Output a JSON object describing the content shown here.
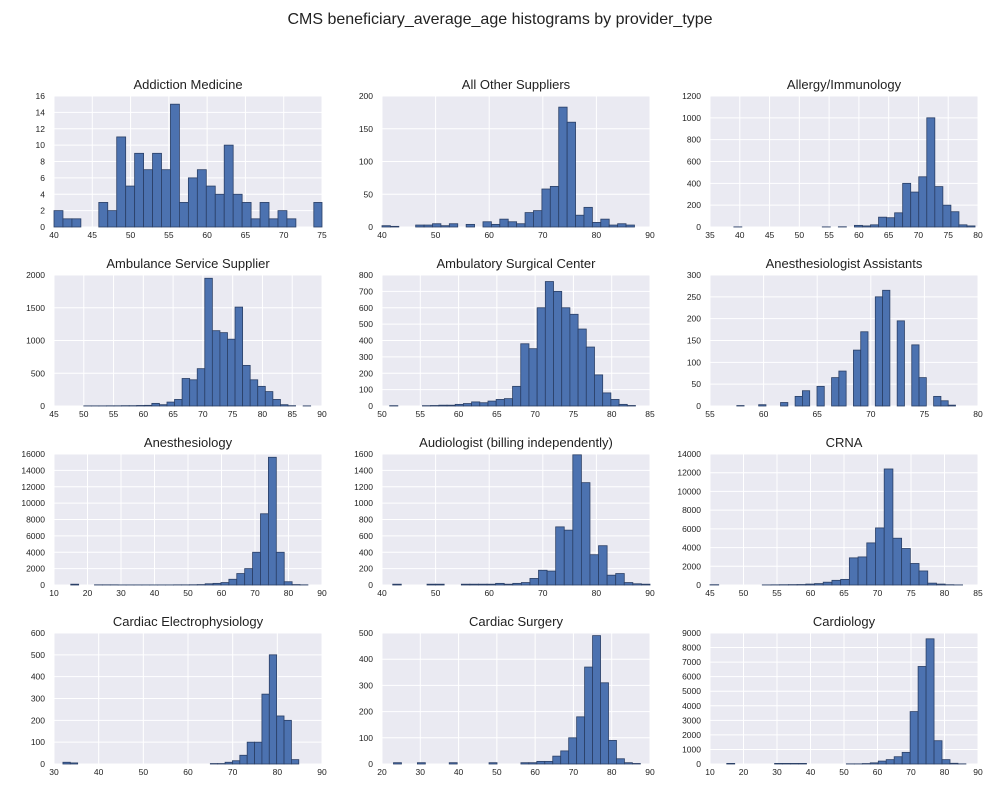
{
  "title": "CMS beneficiary_average_age histograms by provider_type",
  "chart_data": [
    {
      "type": "bar",
      "title": "Addiction Medicine",
      "xlim": [
        40,
        75
      ],
      "ylim": [
        0,
        16
      ],
      "xticks": [
        40,
        45,
        50,
        55,
        60,
        65,
        70,
        75
      ],
      "yticks": [
        0,
        2,
        4,
        6,
        8,
        10,
        12,
        14,
        16
      ],
      "bin_start": 40,
      "bin_width": 1.17,
      "values": [
        2,
        1,
        1,
        0,
        0,
        3,
        2,
        11,
        5,
        9,
        7,
        9,
        7,
        15,
        3,
        6,
        7,
        5,
        4,
        10,
        4,
        3,
        1,
        3,
        1,
        2,
        1,
        0,
        0,
        3
      ]
    },
    {
      "type": "bar",
      "title": "All Other Suppliers",
      "xlim": [
        40,
        90
      ],
      "ylim": [
        0,
        200
      ],
      "xticks": [
        40,
        50,
        60,
        70,
        80,
        90
      ],
      "yticks": [
        0,
        50,
        100,
        150,
        200
      ],
      "bin_start": 40,
      "bin_width": 1.57,
      "values": [
        2,
        1,
        0,
        0,
        3,
        3,
        5,
        2,
        5,
        0,
        4,
        0,
        8,
        4,
        12,
        8,
        5,
        22,
        25,
        58,
        62,
        183,
        160,
        18,
        30,
        7,
        12,
        3,
        5,
        3
      ]
    },
    {
      "type": "bar",
      "title": "Allergy/Immunology",
      "xlim": [
        35,
        80
      ],
      "ylim": [
        0,
        1200
      ],
      "xticks": [
        35,
        40,
        45,
        50,
        55,
        60,
        65,
        70,
        75,
        80
      ],
      "yticks": [
        0,
        200,
        400,
        600,
        800,
        1000,
        1200
      ],
      "bin_start": 39,
      "bin_width": 1.35,
      "values": [
        1,
        0,
        0,
        0,
        0,
        0,
        0,
        0,
        0,
        0,
        0,
        1,
        0,
        2,
        0,
        15,
        10,
        20,
        90,
        85,
        130,
        400,
        320,
        460,
        1000,
        370,
        200,
        140,
        20,
        10
      ]
    },
    {
      "type": "bar",
      "title": "Ambulance Service Supplier",
      "xlim": [
        45,
        90
      ],
      "ylim": [
        0,
        2000
      ],
      "xticks": [
        45,
        50,
        55,
        60,
        65,
        70,
        75,
        80,
        85,
        90
      ],
      "yticks": [
        0,
        500,
        1000,
        1500,
        2000
      ],
      "bin_start": 50,
      "bin_width": 1.27,
      "values": [
        2,
        2,
        2,
        3,
        3,
        5,
        5,
        8,
        10,
        40,
        20,
        60,
        100,
        420,
        400,
        570,
        1950,
        1150,
        1120,
        1020,
        1510,
        620,
        400,
        300,
        220,
        100,
        20,
        5,
        0,
        2
      ]
    },
    {
      "type": "bar",
      "title": "Ambulatory Surgical Center",
      "xlim": [
        50,
        85
      ],
      "ylim": [
        0,
        800
      ],
      "xticks": [
        50,
        55,
        60,
        65,
        70,
        75,
        80,
        85
      ],
      "yticks": [
        0,
        100,
        200,
        300,
        400,
        500,
        600,
        700,
        800
      ],
      "bin_start": 51,
      "bin_width": 1.07,
      "values": [
        2,
        0,
        0,
        0,
        2,
        3,
        5,
        5,
        10,
        15,
        25,
        20,
        30,
        40,
        45,
        120,
        380,
        350,
        600,
        760,
        700,
        600,
        560,
        470,
        360,
        190,
        80,
        40,
        10,
        3
      ]
    },
    {
      "type": "bar",
      "title": "Anesthesiologist Assistants",
      "xlim": [
        55,
        80
      ],
      "ylim": [
        0,
        300
      ],
      "xticks": [
        55,
        60,
        65,
        70,
        75,
        80
      ],
      "yticks": [
        0,
        50,
        100,
        150,
        200,
        250,
        300
      ],
      "bin_start": 57.5,
      "bin_width": 0.68,
      "values": [
        1,
        0,
        0,
        3,
        0,
        0,
        8,
        0,
        22,
        35,
        0,
        45,
        0,
        65,
        80,
        0,
        128,
        170,
        0,
        250,
        265,
        0,
        195,
        0,
        140,
        65,
        0,
        22,
        12,
        2
      ]
    },
    {
      "type": "bar",
      "title": "Anesthesiology",
      "xlim": [
        10,
        90
      ],
      "ylim": [
        0,
        16000
      ],
      "xticks": [
        10,
        20,
        30,
        40,
        50,
        60,
        70,
        80,
        90
      ],
      "yticks": [
        0,
        2000,
        4000,
        6000,
        8000,
        10000,
        12000,
        14000,
        16000
      ],
      "bin_start": 15,
      "bin_width": 2.36,
      "values": [
        100,
        0,
        0,
        20,
        20,
        20,
        10,
        10,
        10,
        10,
        10,
        10,
        10,
        20,
        20,
        30,
        50,
        150,
        200,
        300,
        700,
        1400,
        2000,
        4000,
        8700,
        15600,
        4000,
        400,
        50,
        20
      ]
    },
    {
      "type": "bar",
      "title": "Audiologist (billing independently)",
      "xlim": [
        40,
        90
      ],
      "ylim": [
        0,
        1600
      ],
      "xticks": [
        40,
        50,
        60,
        70,
        80,
        90
      ],
      "yticks": [
        0,
        200,
        400,
        600,
        800,
        1000,
        1200,
        1400,
        1600
      ],
      "bin_start": 42,
      "bin_width": 1.6,
      "values": [
        10,
        0,
        0,
        0,
        10,
        10,
        0,
        0,
        10,
        10,
        10,
        10,
        20,
        10,
        20,
        30,
        80,
        180,
        170,
        710,
        670,
        1590,
        1250,
        370,
        480,
        120,
        140,
        30,
        15,
        10
      ]
    },
    {
      "type": "bar",
      "title": "CRNA",
      "xlim": [
        45,
        85
      ],
      "ylim": [
        0,
        14000
      ],
      "xticks": [
        45,
        50,
        55,
        60,
        65,
        70,
        75,
        80,
        85
      ],
      "yticks": [
        0,
        2000,
        4000,
        6000,
        8000,
        10000,
        12000,
        14000
      ],
      "bin_start": 45,
      "bin_width": 1.3,
      "values": [
        30,
        0,
        0,
        0,
        0,
        0,
        10,
        20,
        30,
        40,
        50,
        100,
        150,
        300,
        500,
        600,
        2900,
        3000,
        4500,
        6100,
        12400,
        5000,
        3900,
        2300,
        1500,
        200,
        100,
        30,
        10,
        0
      ]
    },
    {
      "type": "bar",
      "title": "Cardiac Electrophysiology",
      "xlim": [
        30,
        90
      ],
      "ylim": [
        0,
        600
      ],
      "xticks": [
        30,
        40,
        50,
        60,
        70,
        80,
        90
      ],
      "yticks": [
        0,
        100,
        200,
        300,
        400,
        500,
        600
      ],
      "bin_start": 32,
      "bin_width": 1.65,
      "values": [
        8,
        5,
        0,
        0,
        0,
        0,
        0,
        0,
        0,
        0,
        0,
        0,
        0,
        0,
        0,
        0,
        0,
        0,
        0,
        0,
        2,
        2,
        8,
        15,
        40,
        100,
        100,
        320,
        500,
        220,
        200,
        20
      ]
    },
    {
      "type": "bar",
      "title": "Cardiac Surgery",
      "xlim": [
        20,
        90
      ],
      "ylim": [
        0,
        500
      ],
      "xticks": [
        20,
        30,
        40,
        50,
        60,
        70,
        80,
        90
      ],
      "yticks": [
        0,
        100,
        200,
        300,
        400,
        500
      ],
      "bin_start": 23,
      "bin_width": 2.08,
      "values": [
        5,
        0,
        0,
        5,
        0,
        0,
        0,
        5,
        0,
        0,
        0,
        0,
        5,
        0,
        0,
        0,
        5,
        5,
        10,
        10,
        30,
        50,
        100,
        180,
        370,
        490,
        310,
        90,
        20,
        5,
        2
      ]
    },
    {
      "type": "bar",
      "title": "Cardiology",
      "xlim": [
        10,
        90
      ],
      "ylim": [
        0,
        9000
      ],
      "xticks": [
        10,
        20,
        30,
        40,
        50,
        60,
        70,
        80,
        90
      ],
      "yticks": [
        0,
        1000,
        2000,
        3000,
        4000,
        5000,
        6000,
        7000,
        8000,
        9000
      ],
      "bin_start": 15,
      "bin_width": 2.38,
      "values": [
        40,
        0,
        0,
        0,
        0,
        0,
        40,
        40,
        40,
        40,
        0,
        0,
        0,
        0,
        0,
        10,
        10,
        30,
        80,
        200,
        300,
        500,
        800,
        3600,
        6700,
        8600,
        1600,
        300,
        50,
        10
      ]
    }
  ]
}
